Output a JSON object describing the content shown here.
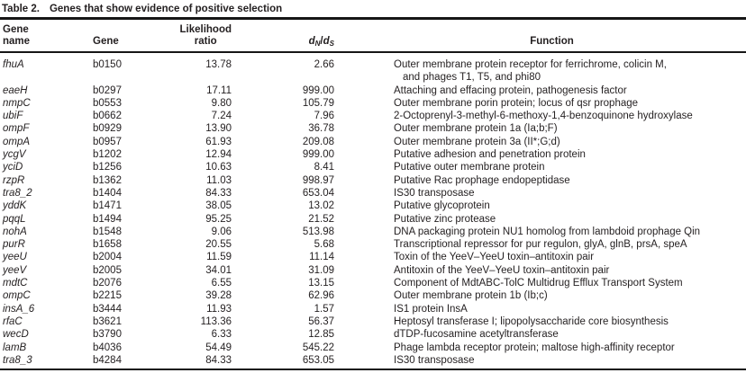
{
  "caption": {
    "label": "Table 2.",
    "title": "Genes that show evidence of positive selection"
  },
  "header": {
    "gene_name_line1": "Gene",
    "gene_name_line2": "name",
    "gene": "Gene",
    "likelihood_line1": "Likelihood",
    "likelihood_line2": "ratio",
    "dnds": {
      "d1": "d",
      "sub1": "N",
      "slash": "/",
      "d2": "d",
      "sub2": "S"
    },
    "function": "Function"
  },
  "rows": [
    {
      "gene_name": "fhuA",
      "gene_id": "b0150",
      "likelihood_ratio": "13.78",
      "dn_ds": "2.66",
      "function_lines": [
        "Outer membrane protein receptor for ferrichrome, colicin M,",
        "and phages T1, T5, and phi80"
      ]
    },
    {
      "gene_name": "eaeH",
      "gene_id": "b0297",
      "likelihood_ratio": "17.11",
      "dn_ds": "999.00",
      "function_lines": [
        "Attaching and effacing protein, pathogenesis factor"
      ]
    },
    {
      "gene_name": "nmpC",
      "gene_id": "b0553",
      "likelihood_ratio": "9.80",
      "dn_ds": "105.79",
      "function_lines": [
        "Outer membrane porin protein; locus of qsr prophage"
      ]
    },
    {
      "gene_name": "ubiF",
      "gene_id": "b0662",
      "likelihood_ratio": "7.24",
      "dn_ds": "7.96",
      "function_lines": [
        "2-Octoprenyl-3-methyl-6-methoxy-1,4-benzoquinone hydroxylase"
      ]
    },
    {
      "gene_name": "ompF",
      "gene_id": "b0929",
      "likelihood_ratio": "13.90",
      "dn_ds": "36.78",
      "function_lines": [
        "Outer membrane protein 1a (Ia;b;F)"
      ]
    },
    {
      "gene_name": "ompA",
      "gene_id": "b0957",
      "likelihood_ratio": "61.93",
      "dn_ds": "209.08",
      "function_lines": [
        "Outer membrane protein 3a (II*;G;d)"
      ]
    },
    {
      "gene_name": "ycgV",
      "gene_id": "b1202",
      "likelihood_ratio": "12.94",
      "dn_ds": "999.00",
      "function_lines": [
        "Putative adhesion and penetration protein"
      ]
    },
    {
      "gene_name": "yciD",
      "gene_id": "b1256",
      "likelihood_ratio": "10.63",
      "dn_ds": "8.41",
      "function_lines": [
        "Putative outer membrane protein"
      ]
    },
    {
      "gene_name": "rzpR",
      "gene_id": "b1362",
      "likelihood_ratio": "11.03",
      "dn_ds": "998.97",
      "function_lines": [
        "Putative Rac prophage endopeptidase"
      ]
    },
    {
      "gene_name": "tra8_2",
      "gene_id": "b1404",
      "likelihood_ratio": "84.33",
      "dn_ds": "653.04",
      "function_lines": [
        "IS30 transposase"
      ]
    },
    {
      "gene_name": "yddK",
      "gene_id": "b1471",
      "likelihood_ratio": "38.05",
      "dn_ds": "13.02",
      "function_lines": [
        "Putative glycoprotein"
      ]
    },
    {
      "gene_name": "pqqL",
      "gene_id": "b1494",
      "likelihood_ratio": "95.25",
      "dn_ds": "21.52",
      "function_lines": [
        "Putative zinc protease"
      ]
    },
    {
      "gene_name": "nohA",
      "gene_id": "b1548",
      "likelihood_ratio": "9.06",
      "dn_ds": "513.98",
      "function_lines": [
        "DNA packaging protein NU1 homolog from lambdoid prophage Qin"
      ]
    },
    {
      "gene_name": "purR",
      "gene_id": "b1658",
      "likelihood_ratio": "20.55",
      "dn_ds": "5.68",
      "function_lines": [
        "Transcriptional repressor for pur regulon, glyA, glnB, prsA, speA"
      ]
    },
    {
      "gene_name": "yeeU",
      "gene_id": "b2004",
      "likelihood_ratio": "11.59",
      "dn_ds": "11.14",
      "function_lines": [
        "Toxin of the YeeV–YeeU toxin–antitoxin pair"
      ]
    },
    {
      "gene_name": "yeeV",
      "gene_id": "b2005",
      "likelihood_ratio": "34.01",
      "dn_ds": "31.09",
      "function_lines": [
        "Antitoxin of the YeeV–YeeU toxin–antitoxin pair"
      ]
    },
    {
      "gene_name": "mdtC",
      "gene_id": "b2076",
      "likelihood_ratio": "6.55",
      "dn_ds": "13.15",
      "function_lines": [
        "Component of MdtABC-TolC Multidrug Efflux Transport System"
      ]
    },
    {
      "gene_name": "ompC",
      "gene_id": "b2215",
      "likelihood_ratio": "39.28",
      "dn_ds": "62.96",
      "function_lines": [
        "Outer membrane protein 1b (Ib;c)"
      ]
    },
    {
      "gene_name": "insA_6",
      "gene_id": "b3444",
      "likelihood_ratio": "11.93",
      "dn_ds": "1.57",
      "function_lines": [
        "IS1 protein InsA"
      ]
    },
    {
      "gene_name": "rfaC",
      "gene_id": "b3621",
      "likelihood_ratio": "113.36",
      "dn_ds": "56.37",
      "function_lines": [
        "Heptosyl transferase I; lipopolysaccharide core biosynthesis"
      ]
    },
    {
      "gene_name": "wecD",
      "gene_id": "b3790",
      "likelihood_ratio": "6.33",
      "dn_ds": "12.85",
      "function_lines": [
        "dTDP-fucosamine acetyltransferase"
      ]
    },
    {
      "gene_name": "lamB",
      "gene_id": "b4036",
      "likelihood_ratio": "54.49",
      "dn_ds": "545.22",
      "function_lines": [
        "Phage lambda receptor protein; maltose high-affinity receptor"
      ]
    },
    {
      "gene_name": "tra8_3",
      "gene_id": "b4284",
      "likelihood_ratio": "84.33",
      "dn_ds": "653.05",
      "function_lines": [
        "IS30 transposase"
      ]
    }
  ],
  "colors": {
    "text": "#231f20",
    "rule": "#161616",
    "background": "#ffffff"
  }
}
